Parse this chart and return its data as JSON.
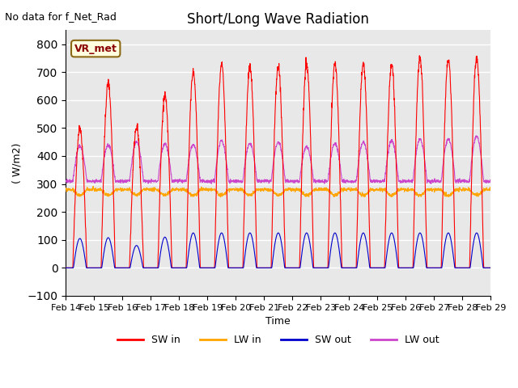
{
  "title": "Short/Long Wave Radiation",
  "xlabel": "Time",
  "ylabel": "( W/m2)",
  "top_left_text": "No data for f_Net_Rad",
  "legend_label": "VR_met",
  "ylim": [
    -100,
    850
  ],
  "xlim": [
    0,
    15
  ],
  "yticks": [
    -100,
    0,
    100,
    200,
    300,
    400,
    500,
    600,
    700,
    800
  ],
  "x_tick_labels": [
    "Feb 14",
    "Feb 15",
    "Feb 16",
    "Feb 17",
    "Feb 18",
    "Feb 19",
    "Feb 20",
    "Feb 21",
    "Feb 22",
    "Feb 23",
    "Feb 24",
    "Feb 25",
    "Feb 26",
    "Feb 27",
    "Feb 28",
    "Feb 29"
  ],
  "colors": {
    "SW_in": "#ff0000",
    "LW_in": "#ffa500",
    "SW_out": "#0000cc",
    "LW_out": "#cc44cc"
  },
  "background_color": "#e8e8e8",
  "grid_color": "#ffffff",
  "n_days": 16,
  "SW_in_peaks": [
    500,
    660,
    505,
    615,
    700,
    730,
    720,
    720,
    730,
    730,
    730,
    725,
    750,
    745,
    750,
    760
  ],
  "LW_in_base": 280,
  "SW_out_peaks": [
    105,
    108,
    80,
    110,
    125,
    125,
    125,
    125,
    125,
    125,
    125,
    125,
    125,
    125,
    125,
    125
  ],
  "LW_out_night": 310,
  "LW_out_peaks": [
    435,
    440,
    450,
    445,
    440,
    455,
    445,
    450,
    435,
    445,
    450,
    455,
    460,
    460,
    470,
    480
  ]
}
